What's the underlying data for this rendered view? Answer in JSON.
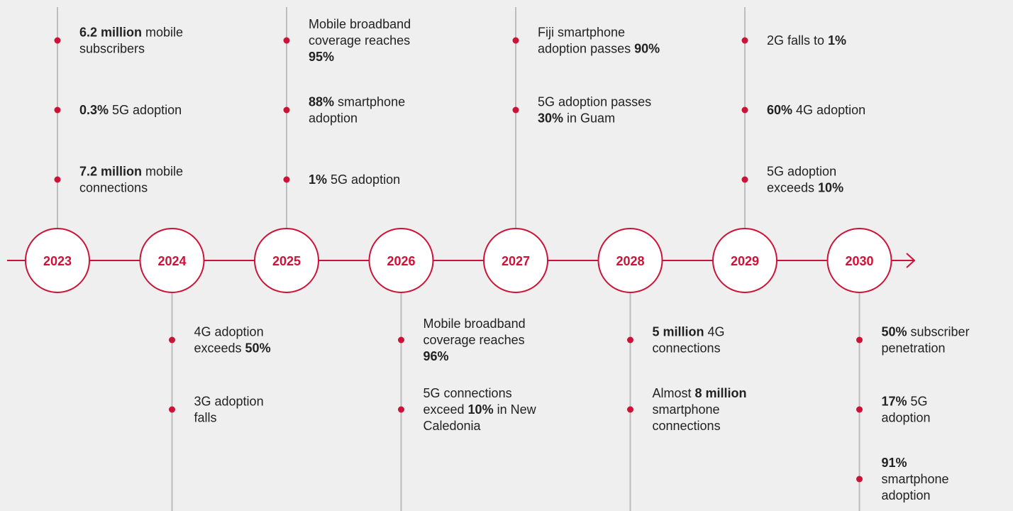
{
  "years": [
    {
      "label": "2023",
      "items": [
        {
          "lines": [
            [
              {
                "text": "6.2 million",
                "bold": true
              },
              {
                "text": " mobile"
              }
            ],
            [
              {
                "text": "subscribers"
              }
            ]
          ]
        },
        {
          "lines": [
            [
              {
                "text": "0.3%",
                "bold": true
              },
              {
                "text": " 5G adoption"
              }
            ]
          ]
        },
        {
          "lines": [
            [
              {
                "text": "7.2 million",
                "bold": true
              },
              {
                "text": " mobile"
              }
            ],
            [
              {
                "text": "connections"
              }
            ]
          ]
        }
      ]
    },
    {
      "label": "2024",
      "items": [
        {
          "lines": [
            [
              {
                "text": "4G adoption"
              }
            ],
            [
              {
                "text": "exceeds "
              },
              {
                "text": "50%",
                "bold": true
              }
            ]
          ]
        },
        {
          "lines": [
            [
              {
                "text": "3G adoption"
              }
            ],
            [
              {
                "text": "falls"
              }
            ]
          ]
        }
      ]
    },
    {
      "label": "2025",
      "items": [
        {
          "lines": [
            [
              {
                "text": "Mobile broadband"
              }
            ],
            [
              {
                "text": "coverage reaches"
              }
            ],
            [
              {
                "text": "95%",
                "bold": true
              }
            ]
          ]
        },
        {
          "lines": [
            [
              {
                "text": "88%",
                "bold": true
              },
              {
                "text": " smartphone"
              }
            ],
            [
              {
                "text": "adoption"
              }
            ]
          ]
        },
        {
          "lines": [
            [
              {
                "text": "1%",
                "bold": true
              },
              {
                "text": " 5G adoption"
              }
            ]
          ]
        }
      ]
    },
    {
      "label": "2026",
      "items": [
        {
          "lines": [
            [
              {
                "text": "Mobile broadband"
              }
            ],
            [
              {
                "text": "coverage reaches"
              }
            ],
            [
              {
                "text": "96%",
                "bold": true
              }
            ]
          ]
        },
        {
          "lines": [
            [
              {
                "text": "5G connections"
              }
            ],
            [
              {
                "text": "exceed "
              },
              {
                "text": "10%",
                "bold": true
              },
              {
                "text": " in New"
              }
            ],
            [
              {
                "text": "Caledonia"
              }
            ]
          ]
        }
      ]
    },
    {
      "label": "2027",
      "items": [
        {
          "lines": [
            [
              {
                "text": "Fiji smartphone"
              }
            ],
            [
              {
                "text": "adoption passes "
              },
              {
                "text": "90%",
                "bold": true
              }
            ]
          ]
        },
        {
          "lines": [
            [
              {
                "text": "5G adoption passes"
              }
            ],
            [
              {
                "text": "30%",
                "bold": true
              },
              {
                "text": " in Guam"
              }
            ]
          ]
        }
      ]
    },
    {
      "label": "2028",
      "items": [
        {
          "lines": [
            [
              {
                "text": "5 million",
                "bold": true
              },
              {
                "text": " 4G"
              }
            ],
            [
              {
                "text": "connections"
              }
            ]
          ]
        },
        {
          "lines": [
            [
              {
                "text": "Almost "
              },
              {
                "text": "8 million",
                "bold": true
              }
            ],
            [
              {
                "text": "smartphone"
              }
            ],
            [
              {
                "text": "connections"
              }
            ]
          ]
        }
      ]
    },
    {
      "label": "2029",
      "items": [
        {
          "lines": [
            [
              {
                "text": "2G falls to "
              },
              {
                "text": "1%",
                "bold": true
              }
            ]
          ]
        },
        {
          "lines": [
            [
              {
                "text": "60%",
                "bold": true
              },
              {
                "text": " 4G adoption"
              }
            ]
          ]
        },
        {
          "lines": [
            [
              {
                "text": "5G adoption"
              }
            ],
            [
              {
                "text": "exceeds "
              },
              {
                "text": "10%",
                "bold": true
              }
            ]
          ]
        }
      ]
    },
    {
      "label": "2030",
      "items": [
        {
          "lines": [
            [
              {
                "text": "50%",
                "bold": true
              },
              {
                "text": " subscriber"
              }
            ],
            [
              {
                "text": "penetration"
              }
            ]
          ]
        },
        {
          "lines": [
            [
              {
                "text": "17%",
                "bold": true
              },
              {
                "text": " 5G"
              }
            ],
            [
              {
                "text": "adoption"
              }
            ]
          ]
        },
        {
          "lines": [
            [
              {
                "text": "91%",
                "bold": true
              }
            ],
            [
              {
                "text": "smartphone"
              }
            ],
            [
              {
                "text": "adoption"
              }
            ]
          ]
        }
      ]
    }
  ]
}
